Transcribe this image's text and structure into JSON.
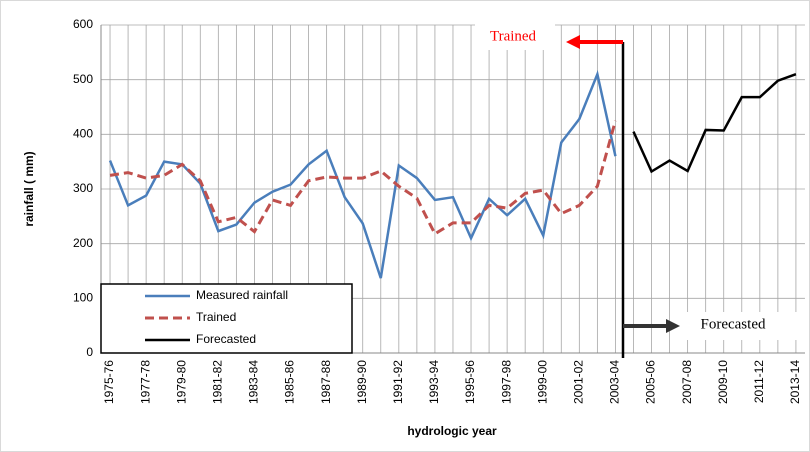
{
  "chart_data": {
    "type": "line",
    "x_label": "hydrologic year",
    "y_label": "rainfall ( mm)",
    "categories": [
      "1975-76",
      null,
      "1977-78",
      null,
      "1979-80",
      null,
      "1981-82",
      null,
      "1983-84",
      null,
      "1985-86",
      null,
      "1987-88",
      null,
      "1989-90",
      null,
      "1991-92",
      null,
      "1993-94",
      null,
      "1995-96",
      null,
      "1997-98",
      null,
      "1999-00",
      null,
      "2001-02",
      null,
      "2003-04",
      null,
      "2005-06",
      null,
      "2007-08",
      null,
      "2009-10",
      null,
      "2011-12",
      null,
      "2013-14"
    ],
    "series": [
      {
        "name": "Measured rainfall",
        "color": "#4a7ebb",
        "dashed": false,
        "values": [
          352,
          270,
          288,
          350,
          345,
          310,
          223,
          235,
          275,
          295,
          308,
          345,
          370,
          285,
          237,
          137,
          343,
          320,
          280,
          285,
          210,
          282,
          252,
          282,
          215,
          385,
          428,
          510,
          360,
          null,
          null,
          null,
          null,
          null,
          null,
          null,
          null,
          null,
          null
        ]
      },
      {
        "name": "Trained",
        "color": "#c0504d",
        "dashed": true,
        "values": [
          325,
          330,
          320,
          325,
          345,
          315,
          240,
          248,
          222,
          280,
          270,
          315,
          322,
          320,
          320,
          333,
          305,
          283,
          218,
          238,
          238,
          270,
          265,
          292,
          298,
          255,
          270,
          305,
          425,
          null,
          null,
          null,
          null,
          null,
          null,
          null,
          null,
          null,
          null
        ]
      },
      {
        "name": "Forecasted",
        "color": "#000000",
        "dashed": false,
        "values": [
          null,
          null,
          null,
          null,
          null,
          null,
          null,
          null,
          null,
          null,
          null,
          null,
          null,
          null,
          null,
          null,
          null,
          null,
          null,
          null,
          null,
          null,
          null,
          null,
          null,
          null,
          null,
          null,
          null,
          405,
          332,
          352,
          333,
          408,
          407,
          468,
          468,
          498,
          510
        ]
      }
    ],
    "ylim": [
      0,
      600
    ],
    "yticks": [
      0,
      100,
      200,
      300,
      400,
      500,
      600
    ],
    "grid": true,
    "annotations": [
      {
        "text": "Trained",
        "color": "#ff0000"
      },
      {
        "text": "Forecasted",
        "color": "#000000"
      }
    ]
  }
}
